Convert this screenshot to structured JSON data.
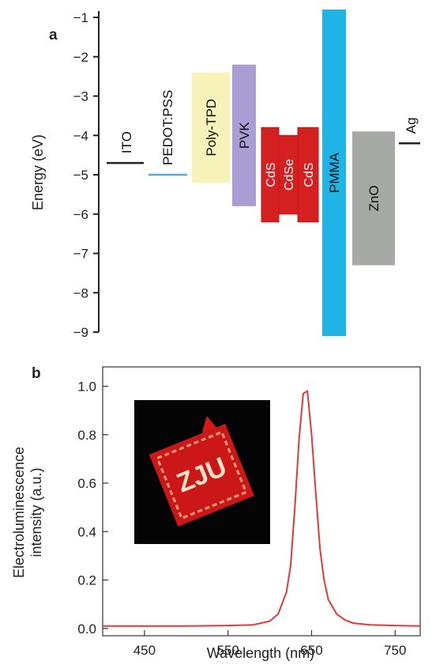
{
  "chart_data": [
    {
      "type": "diagram",
      "panel_label": "a",
      "ylabel": "Energy (eV)",
      "ylim": [
        -9,
        -1
      ],
      "yticks": [
        -1,
        -2,
        -3,
        -4,
        -5,
        -6,
        -7,
        -8,
        -9
      ],
      "levels": [
        {
          "name": "ITO",
          "kind": "line",
          "energy": -4.7,
          "color": "#222222"
        },
        {
          "name": "PEDOT:PSS",
          "kind": "line",
          "energy": -5.0,
          "color": "#5aa7e0"
        },
        {
          "name": "Ag",
          "kind": "line",
          "energy": -4.2,
          "color": "#222222"
        }
      ],
      "bands": [
        {
          "name": "Poly-TPD",
          "top": -2.4,
          "bottom": -5.2,
          "color": "#f7f2b8"
        },
        {
          "name": "PVK",
          "top": -2.2,
          "bottom": -5.8,
          "color": "#a99dd3"
        },
        {
          "name": "CdS",
          "top": -3.8,
          "bottom": -6.2,
          "color": "#d42020"
        },
        {
          "name": "CdSe",
          "top": -4.0,
          "bottom": -6.0,
          "color": "#d42020"
        },
        {
          "name": "CdS",
          "top": -3.8,
          "bottom": -6.2,
          "color": "#d42020"
        },
        {
          "name": "PMMA",
          "top": -0.8,
          "bottom": -9.1,
          "color": "#1fb3e6"
        },
        {
          "name": "ZnO",
          "top": -3.9,
          "bottom": -7.3,
          "color": "#a7a9a7"
        }
      ]
    },
    {
      "type": "line",
      "panel_label": "b",
      "xlabel": "Wavelength (nm)",
      "ylabel_line1": "Electroluminescence",
      "ylabel_line2": "intensity (a.u.)",
      "xlim": [
        400,
        780
      ],
      "ylim": [
        -0.03,
        1.08
      ],
      "xticks": [
        450,
        550,
        650,
        750
      ],
      "yticks": [
        "0.0",
        "0.2",
        "0.4",
        "0.6",
        "0.8",
        "1.0"
      ],
      "series": [
        {
          "color": "#e23a3a",
          "x": [
            400,
            450,
            500,
            550,
            580,
            600,
            610,
            620,
            625,
            630,
            635,
            640,
            645,
            650,
            655,
            660,
            665,
            670,
            680,
            690,
            700,
            720,
            750,
            780
          ],
          "y": [
            0.01,
            0.01,
            0.01,
            0.012,
            0.015,
            0.03,
            0.06,
            0.15,
            0.26,
            0.5,
            0.78,
            0.97,
            0.98,
            0.8,
            0.56,
            0.33,
            0.2,
            0.12,
            0.06,
            0.035,
            0.022,
            0.015,
            0.012,
            0.01
          ]
        }
      ],
      "inset": {
        "text": "ZJU"
      }
    }
  ]
}
